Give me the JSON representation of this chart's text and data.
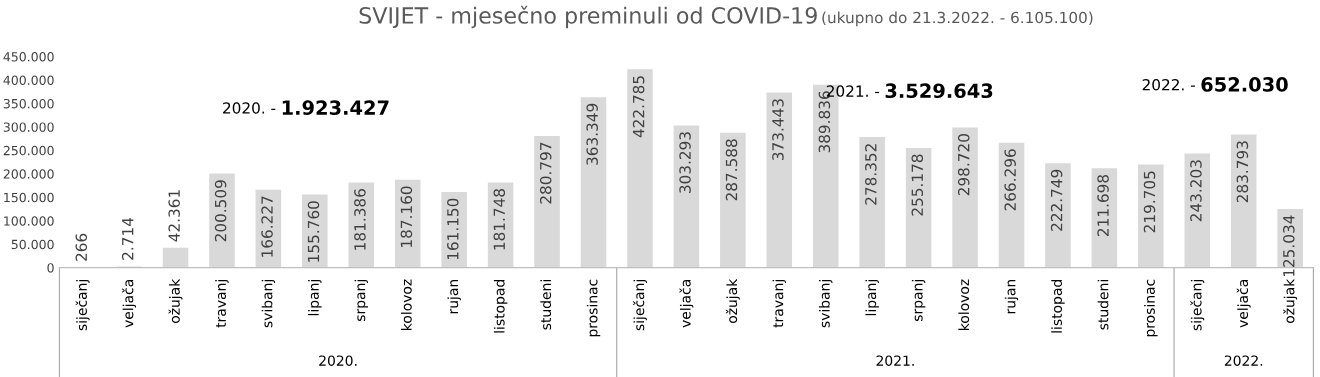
{
  "chart_data": {
    "type": "bar",
    "title": "SVIJET - mjesečno preminuli od COVID-19",
    "subtitle": "(ukupno do 21.3.2022. - 6.105.100)",
    "categories": [
      "siječanj",
      "veljača",
      "ožujak",
      "travanj",
      "svibanj",
      "lipanj",
      "srpanj",
      "kolovoz",
      "rujan",
      "listopad",
      "studeni",
      "prosinac",
      "siječanj",
      "veljača",
      "ožujak",
      "travanj",
      "svibanj",
      "lipanj",
      "srpanj",
      "kolovoz",
      "rujan",
      "listopad",
      "studeni",
      "prosinac",
      "siječanj",
      "veljača",
      "ožujak"
    ],
    "values": [
      266,
      2714,
      42361,
      200509,
      166227,
      155760,
      181386,
      187160,
      161150,
      181748,
      280797,
      363349,
      422785,
      303293,
      287588,
      373443,
      389836,
      278352,
      255178,
      298720,
      266296,
      222749,
      211698,
      219705,
      243203,
      283793,
      125034
    ],
    "value_labels": [
      "266",
      "2.714",
      "42.361",
      "200.509",
      "166.227",
      "155.760",
      "181.386",
      "187.160",
      "161.150",
      "181.748",
      "280.797",
      "363.349",
      "422.785",
      "303.293",
      "287.588",
      "373.443",
      "389.836",
      "278.352",
      "255.178",
      "298.720",
      "266.296",
      "222.749",
      "211.698",
      "219.705",
      "243.203",
      "283.793",
      "125.034"
    ],
    "color": "#d9d9d9",
    "ylim": [
      0,
      450000
    ],
    "yticks": [
      {
        "value": 0,
        "label": "0"
      },
      {
        "value": 50000,
        "label": "50.000"
      },
      {
        "value": 100000,
        "label": "100.000"
      },
      {
        "value": 150000,
        "label": "150.000"
      },
      {
        "value": 200000,
        "label": "200.000"
      },
      {
        "value": 250000,
        "label": "250.000"
      },
      {
        "value": 300000,
        "label": "300.000"
      },
      {
        "value": 350000,
        "label": "350.000"
      },
      {
        "value": 400000,
        "label": "400.000"
      },
      {
        "value": 450000,
        "label": "450.000"
      }
    ],
    "grid": false,
    "legend": false,
    "annotations": [
      "2020. - 1.923.427",
      "2021. - 3.529.643",
      "2022. - 652.030",
      "2020.",
      "2021.",
      "2022."
    ]
  }
}
